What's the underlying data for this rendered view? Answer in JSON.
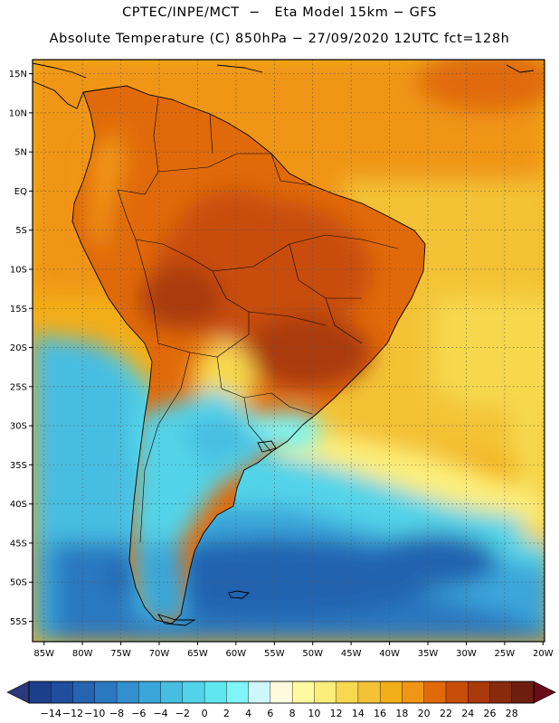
{
  "header": {
    "line1": "CPTEC/INPE/MCT  −   Eta Model 15km − GFS",
    "line2": "Absolute Temperature (C) 850hPa − 27/09/2020 12UTC fct=128h"
  },
  "map": {
    "lat_labels": [
      "15N",
      "10N",
      "5N",
      "EQ",
      "5S",
      "10S",
      "15S",
      "20S",
      "25S",
      "30S",
      "35S",
      "40S",
      "45S",
      "50S",
      "55S"
    ],
    "lat_values": [
      15,
      10,
      5,
      0,
      -5,
      -10,
      -15,
      -20,
      -25,
      -30,
      -35,
      -40,
      -45,
      -50,
      -55
    ],
    "lon_labels": [
      "85W",
      "80W",
      "75W",
      "70W",
      "65W",
      "60W",
      "55W",
      "50W",
      "45W",
      "40W",
      "35W",
      "30W",
      "25W",
      "20W"
    ],
    "lon_values": [
      -85,
      -80,
      -75,
      -70,
      -65,
      -60,
      -55,
      -50,
      -45,
      -40,
      -35,
      -30,
      -25,
      -20
    ],
    "grid": true
  },
  "colorbar": {
    "labels": [
      "−14",
      "−12",
      "−10",
      "−8",
      "−6",
      "−4",
      "−2",
      "0",
      "2",
      "4",
      "6",
      "8",
      "10",
      "12",
      "14",
      "16",
      "18",
      "20",
      "22",
      "24",
      "26",
      "28"
    ],
    "colors": [
      "#1c3f8c",
      "#1f4e9c",
      "#2464b0",
      "#2a78c0",
      "#3290cf",
      "#3aa6d9",
      "#46bde1",
      "#52d3e8",
      "#5fe6ef",
      "#7ff5f6",
      "#cdf7fb",
      "#fffadd",
      "#fffaa0",
      "#fcee7a",
      "#f7d84e",
      "#f3c335",
      "#f2ae19",
      "#f09515",
      "#e06a0a",
      "#c84d0a",
      "#aa3a0c",
      "#8a2a0c",
      "#6e1e10"
    ],
    "under_color": "#2a3a7a",
    "over_color": "#6a0a1c"
  }
}
